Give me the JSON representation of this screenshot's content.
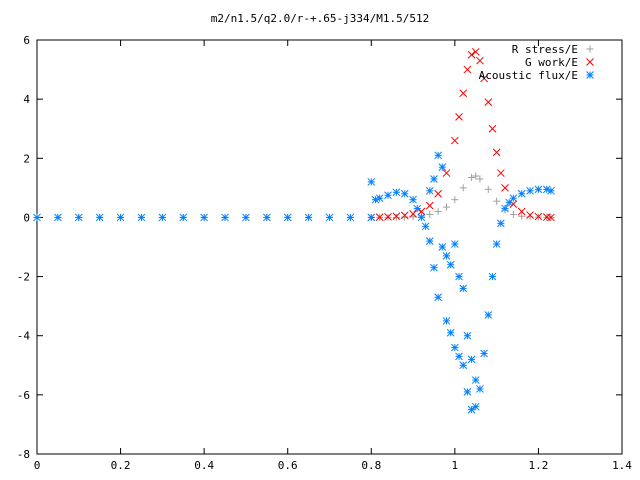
{
  "chart_data": {
    "type": "scatter",
    "title": "m2/n1.5/q2.0/r-+.65-j334/M1.5/512",
    "xlabel": "",
    "ylabel": "",
    "xlim": [
      0,
      1.4
    ],
    "ylim": [
      -8,
      6
    ],
    "x_ticks": [
      "0",
      "0.2",
      "0.4",
      "0.6",
      "0.8",
      "1",
      "1.2",
      "1.4"
    ],
    "y_ticks": [
      "6",
      "4",
      "2",
      "0",
      "-2",
      "-4",
      "-6",
      "-8"
    ],
    "grid": false,
    "legend_position": "top-right",
    "series": [
      {
        "name": "R stress/E",
        "color": "#a0a0a0",
        "marker": "plus",
        "points": [
          [
            0.0,
            0.0
          ],
          [
            0.05,
            0.0
          ],
          [
            0.1,
            0.0
          ],
          [
            0.15,
            0.0
          ],
          [
            0.2,
            0.0
          ],
          [
            0.25,
            0.0
          ],
          [
            0.3,
            0.0
          ],
          [
            0.35,
            0.0
          ],
          [
            0.4,
            0.0
          ],
          [
            0.45,
            0.0
          ],
          [
            0.5,
            0.0
          ],
          [
            0.55,
            0.0
          ],
          [
            0.6,
            0.0
          ],
          [
            0.65,
            0.0
          ],
          [
            0.7,
            0.0
          ],
          [
            0.75,
            0.0
          ],
          [
            0.8,
            0.0
          ],
          [
            0.82,
            0.0
          ],
          [
            0.84,
            0.0
          ],
          [
            0.86,
            0.0
          ],
          [
            0.88,
            0.01
          ],
          [
            0.9,
            0.02
          ],
          [
            0.92,
            0.05
          ],
          [
            0.94,
            0.1
          ],
          [
            0.96,
            0.2
          ],
          [
            0.98,
            0.35
          ],
          [
            1.0,
            0.6
          ],
          [
            1.02,
            1.0
          ],
          [
            1.04,
            1.35
          ],
          [
            1.05,
            1.4
          ],
          [
            1.06,
            1.3
          ],
          [
            1.08,
            0.95
          ],
          [
            1.1,
            0.55
          ],
          [
            1.12,
            0.25
          ],
          [
            1.14,
            0.1
          ],
          [
            1.16,
            0.04
          ],
          [
            1.18,
            0.02
          ],
          [
            1.2,
            0.01
          ],
          [
            1.22,
            0.0
          ],
          [
            1.23,
            0.0
          ]
        ]
      },
      {
        "name": "G work/E",
        "color": "#ff0000",
        "marker": "cross",
        "points": [
          [
            0.8,
            0.0
          ],
          [
            0.82,
            0.01
          ],
          [
            0.84,
            0.02
          ],
          [
            0.86,
            0.04
          ],
          [
            0.88,
            0.07
          ],
          [
            0.9,
            0.12
          ],
          [
            0.92,
            0.2
          ],
          [
            0.94,
            0.4
          ],
          [
            0.96,
            0.8
          ],
          [
            0.98,
            1.5
          ],
          [
            1.0,
            2.6
          ],
          [
            1.01,
            3.4
          ],
          [
            1.02,
            4.2
          ],
          [
            1.03,
            5.0
          ],
          [
            1.04,
            5.5
          ],
          [
            1.05,
            5.6
          ],
          [
            1.06,
            5.3
          ],
          [
            1.07,
            4.7
          ],
          [
            1.08,
            3.9
          ],
          [
            1.09,
            3.0
          ],
          [
            1.1,
            2.2
          ],
          [
            1.11,
            1.5
          ],
          [
            1.12,
            1.0
          ],
          [
            1.14,
            0.45
          ],
          [
            1.16,
            0.2
          ],
          [
            1.18,
            0.08
          ],
          [
            1.2,
            0.03
          ],
          [
            1.22,
            0.01
          ],
          [
            1.23,
            0.0
          ]
        ]
      },
      {
        "name": "Acoustic flux/E",
        "color": "#0080ff",
        "marker": "star",
        "points": [
          [
            0.0,
            0.0
          ],
          [
            0.05,
            0.0
          ],
          [
            0.1,
            0.0
          ],
          [
            0.15,
            0.0
          ],
          [
            0.2,
            0.0
          ],
          [
            0.25,
            0.0
          ],
          [
            0.3,
            0.0
          ],
          [
            0.35,
            0.0
          ],
          [
            0.4,
            0.0
          ],
          [
            0.45,
            0.0
          ],
          [
            0.5,
            0.0
          ],
          [
            0.55,
            0.0
          ],
          [
            0.6,
            0.0
          ],
          [
            0.65,
            0.0
          ],
          [
            0.7,
            0.0
          ],
          [
            0.75,
            0.0
          ],
          [
            0.8,
            0.0
          ],
          [
            0.8,
            1.2
          ],
          [
            0.81,
            0.6
          ],
          [
            0.82,
            0.65
          ],
          [
            0.84,
            0.75
          ],
          [
            0.86,
            0.85
          ],
          [
            0.88,
            0.8
          ],
          [
            0.9,
            0.6
          ],
          [
            0.91,
            0.3
          ],
          [
            0.92,
            0.0
          ],
          [
            0.93,
            -0.3
          ],
          [
            0.94,
            -0.8
          ],
          [
            0.94,
            0.9
          ],
          [
            0.95,
            1.3
          ],
          [
            0.95,
            -1.7
          ],
          [
            0.96,
            2.1
          ],
          [
            0.96,
            -2.7
          ],
          [
            0.97,
            1.7
          ],
          [
            0.97,
            -1.0
          ],
          [
            0.98,
            -1.3
          ],
          [
            0.98,
            -3.5
          ],
          [
            0.99,
            -1.6
          ],
          [
            0.99,
            -3.9
          ],
          [
            1.0,
            -0.9
          ],
          [
            1.0,
            -4.4
          ],
          [
            1.01,
            -2.0
          ],
          [
            1.01,
            -4.7
          ],
          [
            1.02,
            -2.4
          ],
          [
            1.02,
            -5.0
          ],
          [
            1.03,
            -4.0
          ],
          [
            1.03,
            -5.9
          ],
          [
            1.04,
            -4.8
          ],
          [
            1.04,
            -6.5
          ],
          [
            1.05,
            -5.5
          ],
          [
            1.05,
            -6.4
          ],
          [
            1.06,
            -5.8
          ],
          [
            1.07,
            -4.6
          ],
          [
            1.08,
            -3.3
          ],
          [
            1.09,
            -2.0
          ],
          [
            1.1,
            -0.9
          ],
          [
            1.11,
            -0.2
          ],
          [
            1.12,
            0.3
          ],
          [
            1.13,
            0.5
          ],
          [
            1.14,
            0.65
          ],
          [
            1.16,
            0.8
          ],
          [
            1.18,
            0.9
          ],
          [
            1.2,
            0.95
          ],
          [
            1.22,
            0.95
          ],
          [
            1.23,
            0.9
          ]
        ]
      }
    ]
  }
}
